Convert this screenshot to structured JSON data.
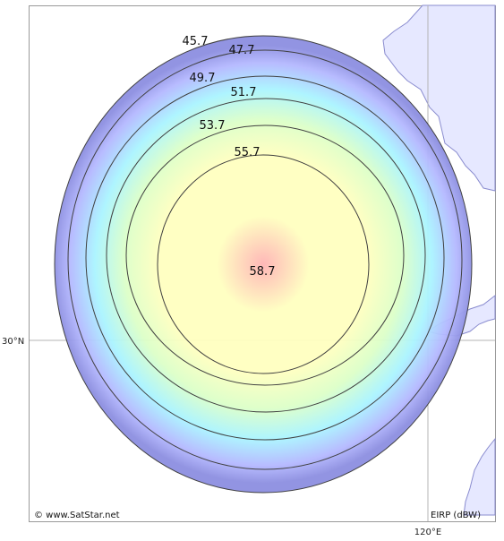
{
  "map": {
    "copyright": "© www.SatStar.net",
    "legend_unit": "EIRP (dBW)",
    "lat_label": "30°N",
    "lon_label": "120°E",
    "colors": {
      "land": "#e6e8ff",
      "land_outline": "#8a8ccf",
      "frame": "#9a9a9a",
      "graticule": "#b4b4b4",
      "contour_line": "#404040",
      "ring_outer": "#8c8ee0",
      "ring_mid": "#b4b8ff",
      "ring_cyan": "#aaf4ff",
      "ring_green": "#dcffc8",
      "core_yellow": "#ffffc0",
      "peak_pink": "#ffb4b4"
    }
  },
  "chart_data": {
    "type": "contour",
    "metric": "EIRP (dBW)",
    "peak": 58.7,
    "contour_levels": [
      45.7,
      47.7,
      49.7,
      51.7,
      53.7,
      55.7
    ]
  }
}
